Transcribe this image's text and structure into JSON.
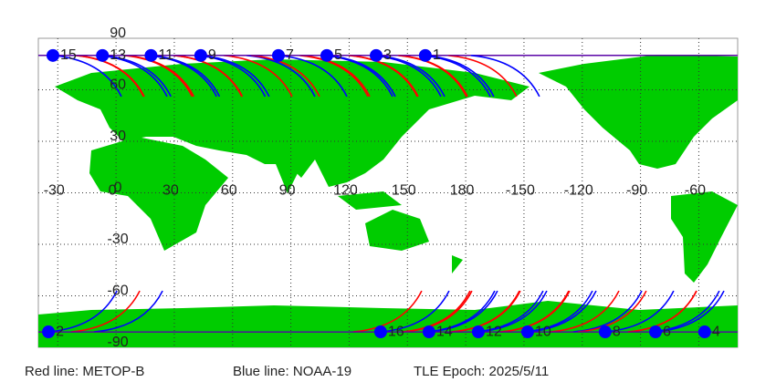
{
  "map": {
    "xlim": [
      -40,
      320
    ],
    "ylim": [
      -90,
      90
    ],
    "lon_ticks": [
      -30,
      0,
      30,
      60,
      90,
      120,
      150,
      180,
      {
        "value": 210,
        "label": "-150"
      },
      {
        "value": 240,
        "label": "-120"
      },
      {
        "value": 270,
        "label": "-90"
      },
      {
        "value": 300,
        "label": "-60"
      }
    ],
    "lat_ticks": [
      90,
      60,
      30,
      0,
      -30,
      -60,
      -90
    ],
    "land_color": "#00cc00",
    "marker_color": "#0000ff",
    "passes": [
      {
        "label": "15",
        "lon": -32.5,
        "lat": 80
      },
      {
        "label": "13",
        "lon": -7,
        "lat": 80
      },
      {
        "label": "11",
        "lon": 18,
        "lat": 80
      },
      {
        "label": "9",
        "lon": 43.6,
        "lat": 80
      },
      {
        "label": "7",
        "lon": 83.6,
        "lat": 80
      },
      {
        "label": "5",
        "lon": 108.5,
        "lat": 80
      },
      {
        "label": "3",
        "lon": 133.9,
        "lat": 80
      },
      {
        "label": "1",
        "lon": 159.2,
        "lat": 80
      },
      {
        "label": "2",
        "lon": -34.8,
        "lat": -81
      },
      {
        "label": "16",
        "lon": 136.2,
        "lat": -81
      },
      {
        "label": "14",
        "lon": 161.1,
        "lat": -81
      },
      {
        "label": "12",
        "lon": 186.5,
        "lat": -81
      },
      {
        "label": "10",
        "lon": 211.9,
        "lat": -81
      },
      {
        "label": "8",
        "lon": 251.8,
        "lat": -81
      },
      {
        "label": "6",
        "lon": 277.7,
        "lat": -81
      },
      {
        "label": "4",
        "lon": 303,
        "lat": -81
      }
    ]
  },
  "legend": [
    {
      "text": "Red line: METOP-B",
      "color": "#ff0000"
    },
    {
      "text": "Blue line: NOAA-19",
      "color": "#0000ff"
    },
    {
      "text": "TLE Epoch: 2025/5/11",
      "color": "#000000"
    }
  ]
}
